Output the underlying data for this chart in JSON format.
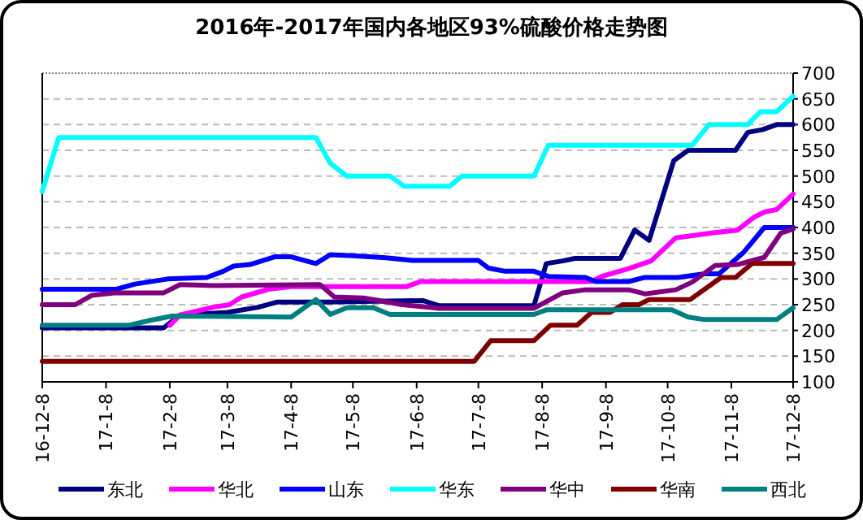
{
  "chart_data": {
    "type": "line",
    "title": "2016年-2017年国内各地区93%硫酸价格走势图",
    "xlim": [
      "2016-12-08",
      "2017-12-08"
    ],
    "xticks": [
      {
        "value": "2016-12-08",
        "label": "16-12-8"
      },
      {
        "value": "2017-01-08",
        "label": "17-1-8"
      },
      {
        "value": "2017-02-08",
        "label": "17-2-8"
      },
      {
        "value": "2017-03-08",
        "label": "17-3-8"
      },
      {
        "value": "2017-04-08",
        "label": "17-4-8"
      },
      {
        "value": "2017-05-08",
        "label": "17-5-8"
      },
      {
        "value": "2017-06-08",
        "label": "17-6-8"
      },
      {
        "value": "2017-07-08",
        "label": "17-7-8"
      },
      {
        "value": "2017-08-08",
        "label": "17-8-8"
      },
      {
        "value": "2017-09-08",
        "label": "17-9-8"
      },
      {
        "value": "2017-10-08",
        "label": "17-10-8"
      },
      {
        "value": "2017-11-08",
        "label": "17-11-8"
      },
      {
        "value": "2017-12-08",
        "label": "17-12-8"
      }
    ],
    "ylim": [
      100,
      700
    ],
    "yticks": [
      100,
      150,
      200,
      250,
      300,
      350,
      400,
      450,
      500,
      550,
      600,
      650,
      700
    ],
    "grid": "y",
    "legend": "bottom",
    "marker": "none",
    "line_style": "solid",
    "series": [
      {
        "name": "东北",
        "color": "#000080",
        "x": [
          "2016-12-08",
          "2017-02-05",
          "2017-02-13",
          "2017-03-08",
          "2017-03-23",
          "2017-04-01",
          "2017-04-25",
          "2017-06-11",
          "2017-06-19",
          "2017-08-04",
          "2017-08-10",
          "2017-08-18",
          "2017-08-24",
          "2017-09-15",
          "2017-09-22",
          "2017-09-29",
          "2017-10-11",
          "2017-10-18",
          "2017-11-10",
          "2017-11-16",
          "2017-11-23",
          "2017-11-30",
          "2017-12-08"
        ],
        "values": [
          205,
          205,
          230,
          235,
          245,
          255,
          255,
          258,
          248,
          248,
          330,
          335,
          340,
          340,
          395,
          375,
          530,
          550,
          550,
          585,
          590,
          600,
          600
        ]
      },
      {
        "name": "华北",
        "color": "#ff00ff",
        "x": [
          "2017-02-08",
          "2017-02-13",
          "2017-03-01",
          "2017-03-09",
          "2017-03-15",
          "2017-03-28",
          "2017-04-08",
          "2017-06-03",
          "2017-06-10",
          "2017-09-01",
          "2017-09-06",
          "2017-09-19",
          "2017-09-30",
          "2017-10-12",
          "2017-10-31",
          "2017-11-11",
          "2017-11-19",
          "2017-11-24",
          "2017-11-30",
          "2017-12-08"
        ],
        "values": [
          210,
          230,
          245,
          250,
          265,
          280,
          285,
          285,
          295,
          295,
          305,
          320,
          335,
          380,
          390,
          395,
          420,
          430,
          435,
          465
        ]
      },
      {
        "name": "山东",
        "color": "#0000ff",
        "x": [
          "2016-12-08",
          "2017-01-13",
          "2017-01-22",
          "2017-02-07",
          "2017-02-26",
          "2017-03-06",
          "2017-03-11",
          "2017-03-19",
          "2017-03-31",
          "2017-04-08",
          "2017-04-20",
          "2017-04-27",
          "2017-05-08",
          "2017-05-24",
          "2017-06-06",
          "2017-07-08",
          "2017-07-13",
          "2017-07-21",
          "2017-08-04",
          "2017-08-11",
          "2017-08-29",
          "2017-09-03",
          "2017-09-19",
          "2017-09-27",
          "2017-10-13",
          "2017-10-26",
          "2017-11-02",
          "2017-11-14",
          "2017-11-24",
          "2017-12-08"
        ],
        "values": [
          280,
          280,
          290,
          300,
          303,
          315,
          325,
          328,
          343,
          343,
          330,
          347,
          345,
          341,
          336,
          336,
          321,
          315,
          315,
          305,
          303,
          295,
          295,
          303,
          303,
          310,
          310,
          352,
          400,
          400
        ]
      },
      {
        "name": "华东",
        "color": "#00ffff",
        "x": [
          "2016-12-08",
          "2016-12-16",
          "2017-04-20",
          "2017-04-27",
          "2017-05-05",
          "2017-05-26",
          "2017-06-02",
          "2017-06-24",
          "2017-06-30",
          "2017-08-04",
          "2017-08-11",
          "2017-10-20",
          "2017-10-28",
          "2017-11-16",
          "2017-11-22",
          "2017-11-30",
          "2017-12-08"
        ],
        "values": [
          470,
          575,
          575,
          525,
          500,
          500,
          480,
          480,
          500,
          500,
          560,
          560,
          600,
          600,
          625,
          625,
          655
        ]
      },
      {
        "name": "华中",
        "color": "#800080",
        "x": [
          "2016-12-08",
          "2016-12-24",
          "2017-01-01",
          "2017-01-12",
          "2017-02-05",
          "2017-02-13",
          "2017-03-01",
          "2017-04-22",
          "2017-04-29",
          "2017-05-13",
          "2017-05-21",
          "2017-06-01",
          "2017-06-19",
          "2017-08-04",
          "2017-08-18",
          "2017-08-29",
          "2017-09-19",
          "2017-09-27",
          "2017-10-12",
          "2017-10-20",
          "2017-10-31",
          "2017-11-11",
          "2017-11-24",
          "2017-12-02",
          "2017-12-08"
        ],
        "values": [
          250,
          250,
          268,
          273,
          273,
          289,
          287,
          289,
          265,
          263,
          258,
          250,
          243,
          243,
          273,
          279,
          279,
          271,
          279,
          294,
          326,
          328,
          342,
          389,
          397
        ]
      },
      {
        "name": "华南",
        "color": "#800000",
        "x": [
          "2016-12-08",
          "2017-07-06",
          "2017-07-14",
          "2017-08-04",
          "2017-08-12",
          "2017-08-25",
          "2017-09-01",
          "2017-09-10",
          "2017-09-16",
          "2017-09-24",
          "2017-09-29",
          "2017-10-19",
          "2017-11-03",
          "2017-11-10",
          "2017-11-18",
          "2017-12-08"
        ],
        "values": [
          140,
          140,
          180,
          180,
          210,
          210,
          235,
          235,
          250,
          250,
          260,
          260,
          303,
          303,
          330,
          330
        ]
      },
      {
        "name": "西北",
        "color": "#008080",
        "x": [
          "2016-12-08",
          "2017-01-19",
          "2017-01-30",
          "2017-02-09",
          "2017-04-08",
          "2017-04-20",
          "2017-04-27",
          "2017-05-05",
          "2017-05-18",
          "2017-05-26",
          "2017-08-04",
          "2017-08-10",
          "2017-10-10",
          "2017-10-18",
          "2017-10-26",
          "2017-11-30",
          "2017-12-08"
        ],
        "values": [
          210,
          210,
          220,
          228,
          226,
          260,
          231,
          244,
          244,
          231,
          231,
          240,
          240,
          226,
          221,
          221,
          244
        ]
      }
    ]
  }
}
